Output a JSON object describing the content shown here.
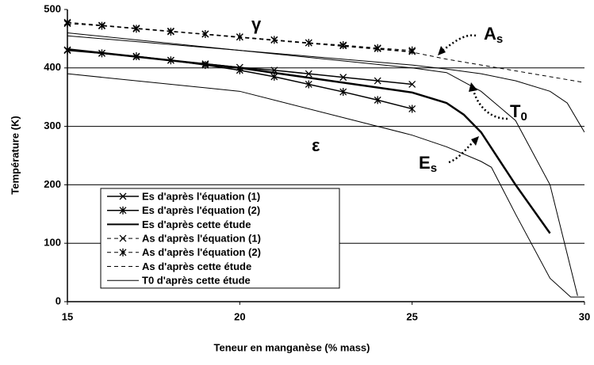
{
  "chart_data": {
    "type": "line",
    "xlabel": "Teneur en manganèse (% mass)",
    "ylabel": "Température (K)",
    "xlim": [
      15,
      30
    ],
    "xticks": [
      15,
      20,
      25,
      30
    ],
    "ylim": [
      0,
      500
    ],
    "yticks": [
      0,
      100,
      200,
      300,
      400,
      500
    ],
    "grid": true,
    "legend": "lower left",
    "series": [
      {
        "name": "Es d'après l'équation (1)",
        "color": "#000000",
        "dash": "solid",
        "marker": "x",
        "width": 1.5,
        "x": [
          15,
          16,
          17,
          18,
          19,
          20,
          21,
          22,
          23,
          24,
          25
        ],
        "values": [
          431,
          425,
          419,
          413,
          407,
          401,
          396,
          390,
          384,
          378,
          372
        ]
      },
      {
        "name": "Es d'après l'équation (2)",
        "color": "#000000",
        "dash": "solid",
        "marker": "asterisk",
        "width": 1.5,
        "x": [
          15,
          16,
          17,
          18,
          19,
          20,
          21,
          22,
          23,
          24,
          25
        ],
        "values": [
          430,
          425,
          420,
          413,
          405,
          396,
          385,
          372,
          359,
          345,
          330
        ]
      },
      {
        "name": "Es d'après cette étude",
        "color": "#000000",
        "dash": "solid",
        "marker": "none",
        "width": 2.5,
        "x": [
          15,
          20,
          25,
          26,
          26.5,
          27,
          28,
          29
        ],
        "values": [
          432,
          400,
          358,
          340,
          320,
          290,
          200,
          117
        ]
      },
      {
        "name": "As d'après l'équation (1)",
        "color": "#000000",
        "dash": "dashed",
        "marker": "x",
        "width": 1,
        "x": [
          15,
          16,
          17,
          18,
          19,
          20,
          21,
          22,
          23,
          24,
          25
        ],
        "values": [
          478,
          473,
          468,
          463,
          458,
          453,
          448,
          443,
          438,
          433,
          428
        ]
      },
      {
        "name": "As d'après l'équation (2)",
        "color": "#000000",
        "dash": "dashed",
        "marker": "asterisk",
        "width": 1,
        "x": [
          15,
          16,
          17,
          18,
          19,
          20,
          21,
          22,
          23,
          24,
          25
        ],
        "values": [
          476,
          472,
          467,
          462,
          458,
          453,
          448,
          443,
          439,
          434,
          430
        ]
      },
      {
        "name": "As d'après cette étude",
        "color": "#000000",
        "dash": "dashed",
        "marker": "none",
        "width": 1,
        "x": [
          15,
          20,
          25,
          26,
          28,
          30
        ],
        "values": [
          478,
          452,
          427,
          415,
          395,
          375
        ]
      },
      {
        "name": "T0 d'après cette étude",
        "color": "#000000",
        "dash": "solid",
        "marker": "none",
        "width": 1,
        "x": [
          15,
          20,
          25,
          26,
          27,
          28,
          29,
          29.5,
          30
        ],
        "values": [
          455,
          430,
          405,
          398,
          390,
          378,
          360,
          340,
          290
        ]
      },
      {
        "color": "#000000",
        "dash": "solid",
        "marker": "none",
        "width": 1,
        "x": [
          15,
          20,
          25,
          26,
          27,
          27.3,
          28,
          29,
          29.6,
          30
        ],
        "values": [
          390,
          360,
          285,
          265,
          240,
          230,
          150,
          40,
          8,
          8
        ]
      },
      {
        "color": "#000000",
        "dash": "solid",
        "marker": "none",
        "width": 1,
        "x": [
          15,
          20,
          25,
          26,
          27,
          28,
          29,
          29.8
        ],
        "values": [
          460,
          430,
          400,
          392,
          360,
          310,
          200,
          10
        ]
      }
    ],
    "annotations": [
      {
        "text": "γ"
      },
      {
        "text": "A",
        "sub": "s"
      },
      {
        "text": "T",
        "sub": "0"
      },
      {
        "text": "ε"
      },
      {
        "text": "E",
        "sub": "s"
      }
    ]
  }
}
